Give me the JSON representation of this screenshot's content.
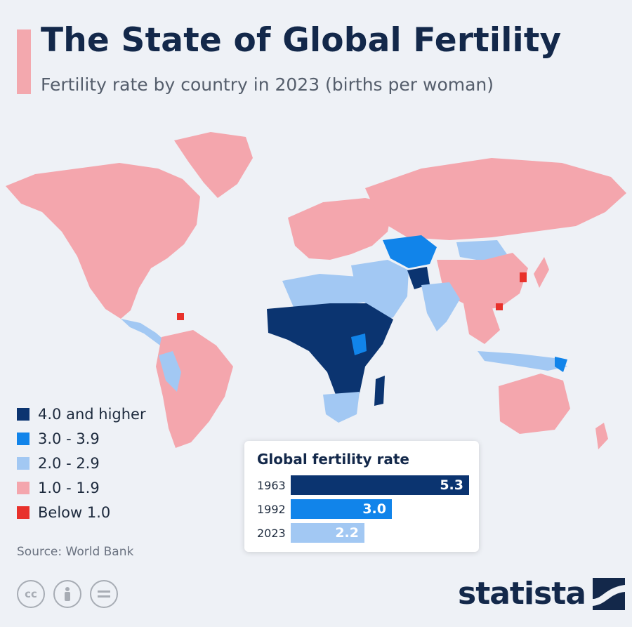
{
  "header": {
    "title": "The State of Global Fertility",
    "subtitle": "Fertility rate by country in 2023 (births per woman)"
  },
  "colors": {
    "accent": "#f3a8ae",
    "navy": "#13284a",
    "c4plus": "#0b3470",
    "c3": "#1184ea",
    "c2": "#a2c8f3",
    "c1": "#f4a6ad",
    "below1": "#e8312b"
  },
  "legend": {
    "items": [
      {
        "label": "4.0 and higher",
        "color": "#0b3470"
      },
      {
        "label": "3.0 - 3.9",
        "color": "#1184ea"
      },
      {
        "label": "2.0 - 2.9",
        "color": "#a2c8f3"
      },
      {
        "label": "1.0 - 1.9",
        "color": "#f4a6ad"
      },
      {
        "label": "Below 1.0",
        "color": "#e8312b"
      }
    ]
  },
  "source": "Source: World Bank",
  "license_icons": [
    "cc-icon",
    "person-icon",
    "equals-icon"
  ],
  "brand": "statista",
  "chart_data": {
    "type": "bar",
    "title": "Global fertility rate",
    "categories": [
      "1963",
      "1992",
      "2023"
    ],
    "values": [
      5.3,
      3.0,
      2.2
    ],
    "value_labels": [
      "5.3",
      "3.0",
      "2.2"
    ],
    "colors": [
      "#0b3470",
      "#1184ea",
      "#a2c8f3"
    ],
    "xlim": [
      0,
      5.3
    ]
  }
}
